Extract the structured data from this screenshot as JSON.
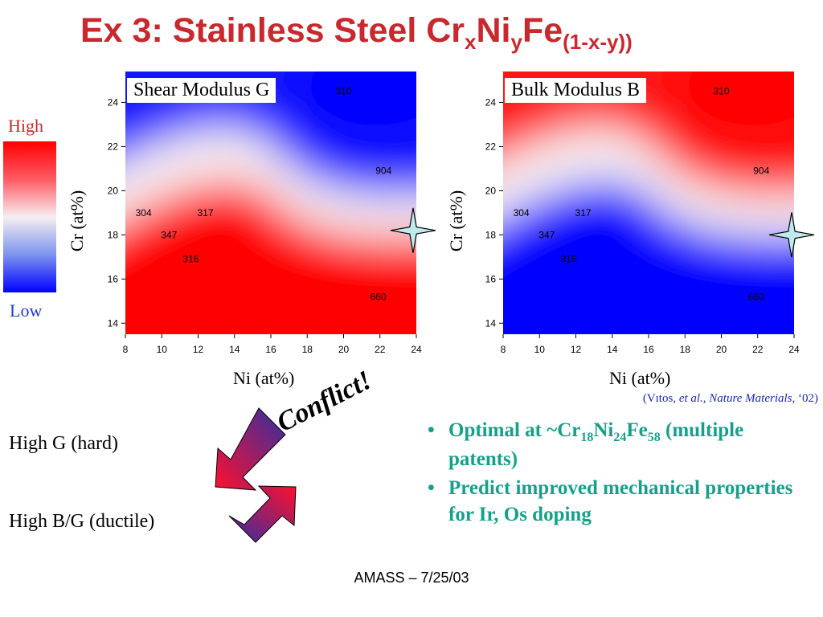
{
  "title": {
    "prefix": "Ex 3: Stainless Steel Cr",
    "s1": "x",
    "mid1": "Ni",
    "s2": "y",
    "mid2": "Fe",
    "s3": "(1-x-y))"
  },
  "scale": {
    "high": "High",
    "low": "Low",
    "colors": {
      "high": "#ff0000",
      "mid": "#f6eef0",
      "low": "#0000ff"
    }
  },
  "chart_data": [
    {
      "type": "heatmap",
      "title": "Shear Modulus G",
      "xlabel": "Ni (at%)",
      "ylabel": "Cr (at%)",
      "xlim": [
        8,
        24
      ],
      "ylim": [
        13.5,
        25.4
      ],
      "xticks": [
        "8",
        "10",
        "12",
        "14",
        "16",
        "18",
        "20",
        "22",
        "24"
      ],
      "yticks": [
        "14",
        "16",
        "18",
        "20",
        "22",
        "24"
      ],
      "annotations": [
        {
          "label": "304",
          "x": 9.0,
          "y": 19.0
        },
        {
          "label": "317",
          "x": 12.4,
          "y": 19.0
        },
        {
          "label": "347",
          "x": 10.4,
          "y": 18.0
        },
        {
          "label": "316",
          "x": 11.6,
          "y": 16.9
        },
        {
          "label": "904",
          "x": 22.2,
          "y": 20.9
        },
        {
          "label": "660",
          "x": 21.9,
          "y": 15.2
        },
        {
          "label": "310",
          "x": 20.0,
          "y": 24.5
        }
      ],
      "optimum_marker": {
        "x": 24,
        "y": 18.2
      }
    },
    {
      "type": "heatmap",
      "title": "Bulk Modulus B",
      "xlabel": "Ni (at%)",
      "ylabel": "Cr (at%)",
      "xlim": [
        8,
        24
      ],
      "ylim": [
        13.5,
        25.4
      ],
      "xticks": [
        "8",
        "10",
        "12",
        "14",
        "16",
        "18",
        "20",
        "22",
        "24"
      ],
      "yticks": [
        "14",
        "16",
        "18",
        "20",
        "22",
        "24"
      ],
      "annotations": [
        {
          "label": "304",
          "x": 9.0,
          "y": 19.0
        },
        {
          "label": "317",
          "x": 12.4,
          "y": 19.0
        },
        {
          "label": "347",
          "x": 10.4,
          "y": 18.0
        },
        {
          "label": "316",
          "x": 11.6,
          "y": 16.9
        },
        {
          "label": "904",
          "x": 22.2,
          "y": 20.9
        },
        {
          "label": "660",
          "x": 21.9,
          "y": 15.2
        },
        {
          "label": "310",
          "x": 20.0,
          "y": 24.5
        }
      ],
      "optimum_marker": {
        "x": 24,
        "y": 18.0
      }
    }
  ],
  "citation": {
    "pre": "(Vıtos, ",
    "italic": "et al., Nature Materials,",
    "post": " ‘02)"
  },
  "lower": {
    "high_g": "High G (hard)",
    "high_bg": "High B/G (ductile)",
    "conflict": "Conflict!",
    "bullet1": {
      "a": "Optimal at ~Cr",
      "s1": "18",
      "b": "Ni",
      "s2": "24",
      "c": "Fe",
      "s3": "58",
      "d": " (multiple patents)"
    },
    "bullet2": "Predict improved mechanical properties for Ir, Os doping"
  },
  "footer": "AMASS – 7/25/03"
}
